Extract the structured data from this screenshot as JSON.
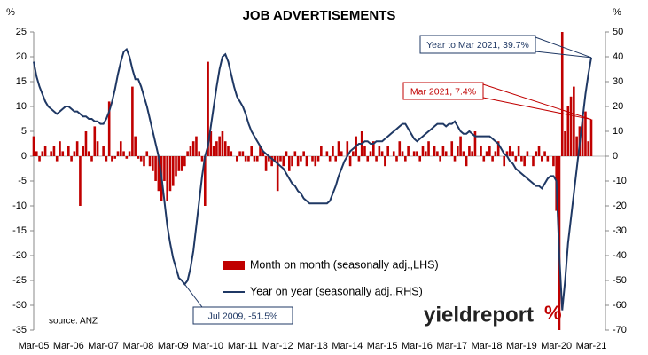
{
  "chart_data": {
    "type": "bar",
    "title": "JOB ADVERTISEMENTS",
    "y_unit": "%",
    "y2_unit": "%",
    "source": "source: ANZ",
    "logo": "yieldreport",
    "logo_mark": "%",
    "categories": [
      "Mar-05",
      null,
      null,
      null,
      null,
      null,
      null,
      null,
      null,
      null,
      null,
      null,
      "Mar-06",
      null,
      null,
      null,
      null,
      null,
      null,
      null,
      null,
      null,
      null,
      null,
      "Mar-07",
      null,
      null,
      null,
      null,
      null,
      null,
      null,
      null,
      null,
      null,
      null,
      "Mar-08",
      null,
      null,
      null,
      null,
      null,
      null,
      null,
      null,
      null,
      null,
      null,
      "Mar-09",
      null,
      null,
      null,
      null,
      null,
      null,
      null,
      null,
      null,
      null,
      null,
      "Mar-10",
      null,
      null,
      null,
      null,
      null,
      null,
      null,
      null,
      null,
      null,
      null,
      "Mar-11",
      null,
      null,
      null,
      null,
      null,
      null,
      null,
      null,
      null,
      null,
      null,
      "Mar-12",
      null,
      null,
      null,
      null,
      null,
      null,
      null,
      null,
      null,
      null,
      null,
      "Mar-13",
      null,
      null,
      null,
      null,
      null,
      null,
      null,
      null,
      null,
      null,
      null,
      "Mar-14",
      null,
      null,
      null,
      null,
      null,
      null,
      null,
      null,
      null,
      null,
      null,
      "Mar-15",
      null,
      null,
      null,
      null,
      null,
      null,
      null,
      null,
      null,
      null,
      null,
      "Mar-16",
      null,
      null,
      null,
      null,
      null,
      null,
      null,
      null,
      null,
      null,
      null,
      "Mar-17",
      null,
      null,
      null,
      null,
      null,
      null,
      null,
      null,
      null,
      null,
      null,
      "Mar-18",
      null,
      null,
      null,
      null,
      null,
      null,
      null,
      null,
      null,
      null,
      null,
      "Mar-19",
      null,
      null,
      null,
      null,
      null,
      null,
      null,
      null,
      null,
      null,
      null,
      "Mar-20",
      null,
      null,
      null,
      null,
      null,
      null,
      null,
      null,
      null,
      null,
      null,
      "Mar-21"
    ],
    "series": [
      {
        "name": "Month on month (seasonally adj.,LHS)",
        "type": "bar",
        "axis": "y",
        "color": "#c00000",
        "values": [
          4,
          1,
          -1,
          1,
          2,
          0,
          1,
          2,
          -1,
          3,
          1,
          0,
          2,
          -1,
          1,
          3,
          -10,
          2,
          5,
          1,
          -1,
          6,
          3,
          0,
          2,
          -1,
          11,
          -1,
          -0.5,
          1,
          3,
          1,
          -0.5,
          1,
          14,
          4,
          -0.5,
          -1,
          -2,
          1,
          -2,
          -3,
          -5,
          -7,
          -9,
          -5,
          -9,
          -7,
          -6,
          -4,
          -3,
          -3,
          -2,
          1,
          2,
          3,
          4,
          1,
          -1,
          -10,
          19,
          5,
          2,
          3,
          4,
          5,
          3,
          2,
          1,
          0,
          -1,
          1,
          1,
          -1,
          -1,
          2,
          -1,
          -1,
          2,
          1,
          -3,
          -1,
          -2,
          -1,
          -7,
          -1,
          -2,
          1,
          -3,
          -2,
          1,
          -2,
          -1,
          1,
          -2,
          0,
          -1,
          -2,
          -1,
          2,
          0,
          1,
          -1,
          2,
          -1,
          3,
          1,
          0,
          3,
          -2,
          1,
          4,
          -1,
          5,
          2,
          -1,
          1,
          3,
          -1,
          2,
          1,
          -2,
          2,
          0,
          1,
          -1,
          3,
          1,
          -1,
          2,
          0,
          1,
          1,
          -1,
          2,
          1,
          3,
          0,
          2,
          1,
          -1,
          2,
          1,
          0,
          3,
          -1,
          2,
          4,
          1,
          -2,
          2,
          1,
          5,
          0,
          2,
          -1,
          1,
          2,
          -1,
          1,
          3,
          0,
          -2,
          1,
          2,
          1,
          -1,
          2,
          -1,
          -2,
          1,
          0,
          -2,
          1,
          2,
          -1,
          1,
          -1,
          0,
          -2,
          -11,
          -35,
          25,
          5,
          10,
          12,
          14,
          4,
          6,
          8,
          9,
          3,
          7.4
        ]
      },
      {
        "name": "Year on year (seasonally adj.,RHS)",
        "type": "line",
        "axis": "y2",
        "color": "#1f3864",
        "values": [
          38,
          32,
          28,
          25,
          22,
          20,
          19,
          18,
          17,
          18,
          19,
          20,
          20,
          19,
          18,
          18,
          17,
          16,
          16,
          15,
          15,
          14,
          14,
          13,
          13,
          15,
          18,
          22,
          27,
          33,
          38,
          42,
          43,
          40,
          35,
          31,
          31,
          28,
          24,
          20,
          15,
          10,
          5,
          0,
          -8,
          -18,
          -28,
          -35,
          -41,
          -45,
          -49,
          -50,
          -51.5,
          -50,
          -45,
          -38,
          -28,
          -18,
          -8,
          0,
          4,
          12,
          20,
          28,
          35,
          40,
          41,
          38,
          33,
          28,
          24,
          22,
          20,
          17,
          13,
          10,
          8,
          6,
          4,
          2,
          1,
          0,
          -1,
          -2,
          -3,
          -4,
          -5,
          -7,
          -9,
          -11,
          -12,
          -14,
          -15,
          -17,
          -18,
          -19,
          -19,
          -19,
          -19,
          -19,
          -19,
          -19,
          -18,
          -15,
          -12,
          -8,
          -5,
          -2,
          0,
          2,
          3,
          4,
          5,
          5,
          6,
          6,
          5,
          5,
          6,
          6,
          6,
          7,
          8,
          9,
          10,
          11,
          12,
          13,
          13,
          11,
          9,
          7,
          6,
          7,
          8,
          9,
          10,
          11,
          12,
          13,
          13,
          13,
          12,
          13,
          13,
          14,
          12,
          10,
          9,
          9,
          10,
          9,
          8,
          8,
          8,
          8,
          8,
          8,
          7,
          6,
          5,
          3,
          1,
          0,
          -2,
          -3,
          -5,
          -6,
          -7,
          -8,
          -9,
          -10,
          -11,
          -12,
          -12,
          -13,
          -11,
          -9,
          -8,
          -8,
          -10,
          -40,
          -62,
          -50,
          -35,
          -25,
          -15,
          -5,
          5,
          15,
          25,
          33,
          39.7
        ]
      }
    ],
    "ylim": [
      -35,
      25
    ],
    "yticks": [
      -35,
      -30,
      -25,
      -20,
      -15,
      -10,
      -5,
      0,
      5,
      10,
      15,
      20,
      25
    ],
    "y2lim": [
      -70,
      50
    ],
    "y2ticks": [
      -70,
      -60,
      -50,
      -40,
      -30,
      -20,
      -10,
      0,
      10,
      20,
      30,
      40,
      50
    ],
    "annotations": [
      {
        "text": "Year to Mar 2021, 39.7%",
        "series": 1,
        "index": 192
      },
      {
        "text": "Mar 2021, 7.4%",
        "series": 0,
        "index": 192
      },
      {
        "text": "Jul 2009, -51.5%",
        "series": 1,
        "index": 52
      }
    ]
  }
}
